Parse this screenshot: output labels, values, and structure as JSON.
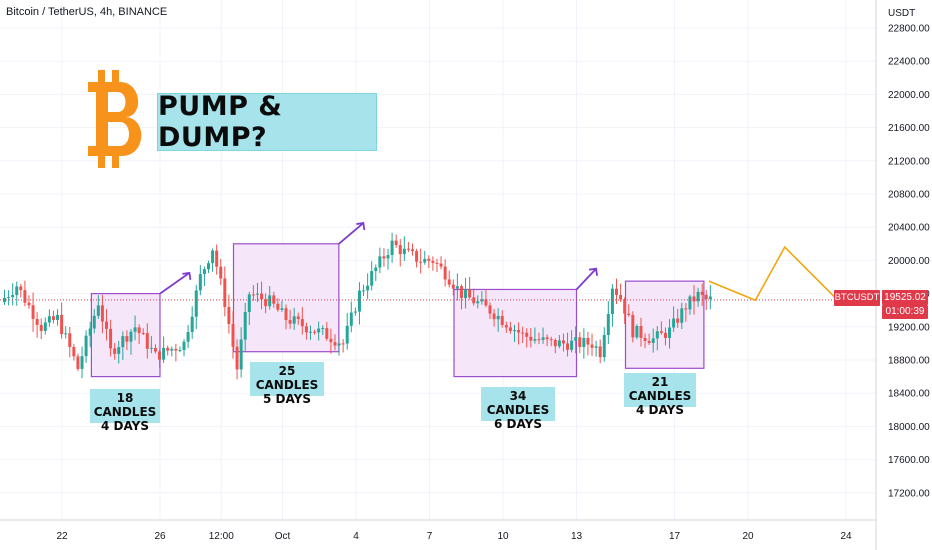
{
  "header": {
    "symbol_title": "Bitcoin / TetherUS, 4h, BINANCE",
    "currency": "USDT"
  },
  "headline": "PUMP & DUMP?",
  "logo": {
    "icon": "bitcoin-logo-icon",
    "color": "#f7931a"
  },
  "price_badge": {
    "symbol": "BTCUSDT",
    "last_price": "19525.02",
    "countdown": "01:00:39",
    "color": "#e0394a"
  },
  "colors": {
    "up": "#26a69a",
    "down": "#ef5350",
    "rect_border": "#9c4dcc",
    "rect_fill": "#f3e3f8",
    "callout_fill": "#a6e3ea",
    "projection": "#f2a60d",
    "last_price_line": "#e0394a"
  },
  "annotations": [
    {
      "line1": "18 CANDLES",
      "line2": "4 DAYS"
    },
    {
      "line1": "25 CANDLES",
      "line2": "5 DAYS"
    },
    {
      "line1": "34 CANDLES",
      "line2": "6 DAYS"
    },
    {
      "line1": "21 CANDLES",
      "line2": "4 DAYS"
    }
  ],
  "chart_data": {
    "type": "candlestick",
    "title": "Bitcoin / TetherUS, 4h, BINANCE",
    "ylabel": "USDT",
    "ylim": [
      17000,
      22800
    ],
    "y_ticks": [
      "22800.00",
      "22400.00",
      "22000.00",
      "21600.00",
      "21200.00",
      "20800.00",
      "20400.00",
      "20000.00",
      "19600.00",
      "19200.00",
      "18800.00",
      "18400.00",
      "18000.00",
      "17600.00",
      "17200.00"
    ],
    "x_ticks": [
      "22",
      "26",
      "12:00",
      "Oct",
      "4",
      "7",
      "10",
      "13",
      "17",
      "20",
      "24"
    ],
    "last_price": 19525.02,
    "anchor_points": [
      {
        "x": 0,
        "y": 19500
      },
      {
        "x": 4,
        "y": 19700
      },
      {
        "x": 10,
        "y": 19200
      },
      {
        "x": 14,
        "y": 19300
      },
      {
        "x": 19,
        "y": 18700
      },
      {
        "x": 24,
        "y": 19500
      },
      {
        "x": 27,
        "y": 18900
      },
      {
        "x": 33,
        "y": 19200
      },
      {
        "x": 38,
        "y": 18850
      },
      {
        "x": 45,
        "y": 19000
      },
      {
        "x": 49,
        "y": 19800
      },
      {
        "x": 52,
        "y": 20150
      },
      {
        "x": 55,
        "y": 19500
      },
      {
        "x": 58,
        "y": 18700
      },
      {
        "x": 61,
        "y": 19600
      },
      {
        "x": 66,
        "y": 19500
      },
      {
        "x": 70,
        "y": 19300
      },
      {
        "x": 75,
        "y": 19200
      },
      {
        "x": 80,
        "y": 19100
      },
      {
        "x": 84,
        "y": 19000
      },
      {
        "x": 88,
        "y": 19600
      },
      {
        "x": 92,
        "y": 19900
      },
      {
        "x": 96,
        "y": 20200
      },
      {
        "x": 99,
        "y": 20100
      },
      {
        "x": 103,
        "y": 20000
      },
      {
        "x": 106,
        "y": 20000
      },
      {
        "x": 109,
        "y": 19850
      },
      {
        "x": 113,
        "y": 19600
      },
      {
        "x": 120,
        "y": 19400
      },
      {
        "x": 128,
        "y": 19100
      },
      {
        "x": 135,
        "y": 19000
      },
      {
        "x": 145,
        "y": 19000
      },
      {
        "x": 147,
        "y": 18900
      },
      {
        "x": 150,
        "y": 19700
      },
      {
        "x": 152,
        "y": 19550
      },
      {
        "x": 155,
        "y": 19150
      },
      {
        "x": 160,
        "y": 19050
      },
      {
        "x": 164,
        "y": 19150
      },
      {
        "x": 168,
        "y": 19450
      },
      {
        "x": 171,
        "y": 19580
      },
      {
        "x": 173,
        "y": 19525
      }
    ],
    "ranges": [
      {
        "label": "18 CANDLES / 4 DAYS",
        "x_start": "Sep 23",
        "x_end": "Sep 26",
        "y_low": 18600,
        "y_high": 19600
      },
      {
        "label": "25 CANDLES / 5 DAYS",
        "x_start": "Sep 29",
        "x_end": "Oct 3",
        "y_low": 18900,
        "y_high": 20200
      },
      {
        "label": "34 CANDLES / 6 DAYS",
        "x_start": "Oct 8",
        "x_end": "Oct 13",
        "y_low": 18600,
        "y_high": 19650
      },
      {
        "label": "21 CANDLES / 4 DAYS",
        "x_start": "Oct 15",
        "x_end": "Oct 18",
        "y_low": 18700,
        "y_high": 19750
      }
    ],
    "projection": [
      {
        "x": "Oct 18",
        "y": 19750
      },
      {
        "x": "Oct 20",
        "y": 19520
      },
      {
        "x": "Oct 21",
        "y": 20160
      },
      {
        "x": "Oct 23",
        "y": 19480
      }
    ]
  }
}
